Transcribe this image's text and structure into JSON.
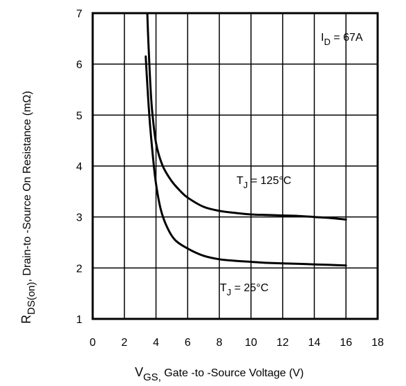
{
  "chart_data": {
    "type": "line",
    "title": "",
    "xlabel": {
      "main": "V",
      "sub": "GS,",
      "rest": " Gate -to -Source Voltage  (V)"
    },
    "ylabel": {
      "main": "R",
      "sub": "DS(on)",
      "rest": ",  Drain-to -Source On Resistance  (mΩ)"
    },
    "xlim": [
      0,
      18
    ],
    "ylim": [
      1,
      7
    ],
    "x_ticks": [
      "0",
      "2",
      "4",
      "6",
      "8",
      "10",
      "12",
      "14",
      "16",
      "18"
    ],
    "y_ticks": [
      "1",
      "2",
      "3",
      "4",
      "5",
      "6",
      "7"
    ],
    "grid": true,
    "annotations": {
      "id": {
        "main": "I",
        "sub": "D",
        "rest": " = 67A"
      },
      "t125": {
        "main": "T",
        "sub": "J",
        "rest": " = 125°C"
      },
      "t25": {
        "main": "T",
        "sub": "J",
        "rest": " = 25°C"
      }
    },
    "series": [
      {
        "x": [
          3.45,
          3.55,
          3.7,
          3.85,
          4.0,
          4.2,
          4.5,
          5.0,
          5.5,
          6.0,
          7.0,
          8.0,
          9.0,
          10.0,
          11.0,
          12.0,
          13.0,
          14.0,
          15.0,
          16.0
        ],
        "y": [
          7.0,
          6.2,
          5.3,
          4.8,
          4.45,
          4.2,
          3.95,
          3.7,
          3.52,
          3.38,
          3.2,
          3.12,
          3.08,
          3.05,
          3.04,
          3.03,
          3.02,
          3.0,
          2.98,
          2.95
        ]
      },
      {
        "x": [
          3.35,
          3.45,
          3.6,
          3.8,
          4.0,
          4.3,
          4.7,
          5.2,
          6.0,
          7.0,
          8.0,
          9.0,
          10.0,
          11.0,
          12.0,
          13.0,
          14.0,
          15.0,
          16.0
        ],
        "y": [
          6.15,
          5.6,
          4.9,
          4.2,
          3.65,
          3.15,
          2.8,
          2.55,
          2.38,
          2.24,
          2.17,
          2.14,
          2.12,
          2.1,
          2.09,
          2.08,
          2.07,
          2.06,
          2.05
        ]
      }
    ],
    "colors": {
      "line": "#000000",
      "grid": "#000000"
    }
  }
}
